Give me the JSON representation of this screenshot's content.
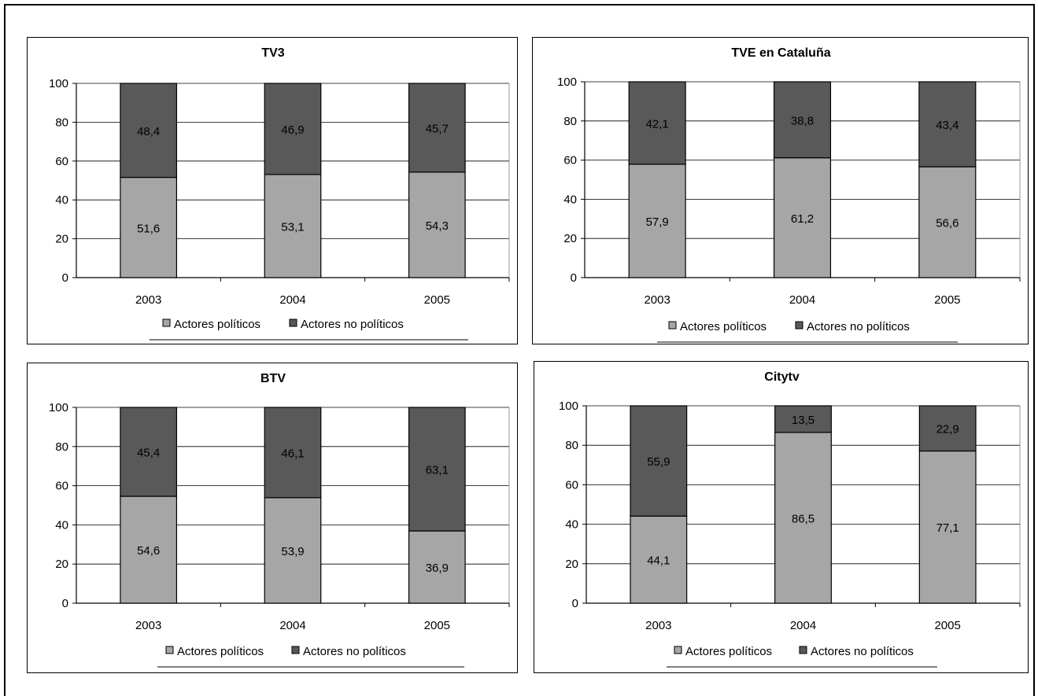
{
  "colors": {
    "politicos": "#a6a6a6",
    "no_politicos": "#595959",
    "grid": "#000000"
  },
  "chart_data": [
    {
      "type": "bar",
      "stacked": true,
      "title": "TV3",
      "categories": [
        "2003",
        "2004",
        "2005"
      ],
      "yticks": [
        "0",
        "20",
        "40",
        "60",
        "80",
        "100"
      ],
      "ylim": [
        0,
        100
      ],
      "grid": true,
      "legend_position": "bottom",
      "series": [
        {
          "name": "Actores políticos",
          "values": [
            51.6,
            53.1,
            54.3
          ],
          "labels": [
            "51,6",
            "53,1",
            "54,3"
          ]
        },
        {
          "name": "Actores no políticos",
          "values": [
            48.4,
            46.9,
            45.7
          ],
          "labels": [
            "48,4",
            "46,9",
            "45,7"
          ]
        }
      ]
    },
    {
      "type": "bar",
      "stacked": true,
      "title": "TVE en Cataluña",
      "categories": [
        "2003",
        "2004",
        "2005"
      ],
      "yticks": [
        "0",
        "20",
        "40",
        "60",
        "80",
        "100"
      ],
      "ylim": [
        0,
        100
      ],
      "grid": true,
      "legend_position": "bottom",
      "series": [
        {
          "name": "Actores políticos",
          "values": [
            57.9,
            61.2,
            56.6
          ],
          "labels": [
            "57,9",
            "61,2",
            "56,6"
          ]
        },
        {
          "name": "Actores no políticos",
          "values": [
            42.1,
            38.8,
            43.4
          ],
          "labels": [
            "42,1",
            "38,8",
            "43,4"
          ]
        }
      ]
    },
    {
      "type": "bar",
      "stacked": true,
      "title": "BTV",
      "categories": [
        "2003",
        "2004",
        "2005"
      ],
      "yticks": [
        "0",
        "20",
        "40",
        "60",
        "80",
        "100"
      ],
      "ylim": [
        0,
        100
      ],
      "grid": true,
      "legend_position": "bottom",
      "series": [
        {
          "name": "Actores políticos",
          "values": [
            54.6,
            53.9,
            36.9
          ],
          "labels": [
            "54,6",
            "53,9",
            "36,9"
          ]
        },
        {
          "name": "Actores no políticos",
          "values": [
            45.4,
            46.1,
            63.1
          ],
          "labels": [
            "45,4",
            "46,1",
            "63,1"
          ]
        }
      ]
    },
    {
      "type": "bar",
      "stacked": true,
      "title": "Citytv",
      "categories": [
        "2003",
        "2004",
        "2005"
      ],
      "yticks": [
        "0",
        "20",
        "40",
        "60",
        "80",
        "100"
      ],
      "ylim": [
        0,
        100
      ],
      "grid": true,
      "legend_position": "bottom",
      "series": [
        {
          "name": "Actores políticos",
          "values": [
            44.1,
            86.5,
            77.1
          ],
          "labels": [
            "44,1",
            "86,5",
            "77,1"
          ]
        },
        {
          "name": "Actores no políticos",
          "values": [
            55.9,
            13.5,
            22.9
          ],
          "labels": [
            "55,9",
            "13,5",
            "22,9"
          ]
        }
      ]
    }
  ]
}
